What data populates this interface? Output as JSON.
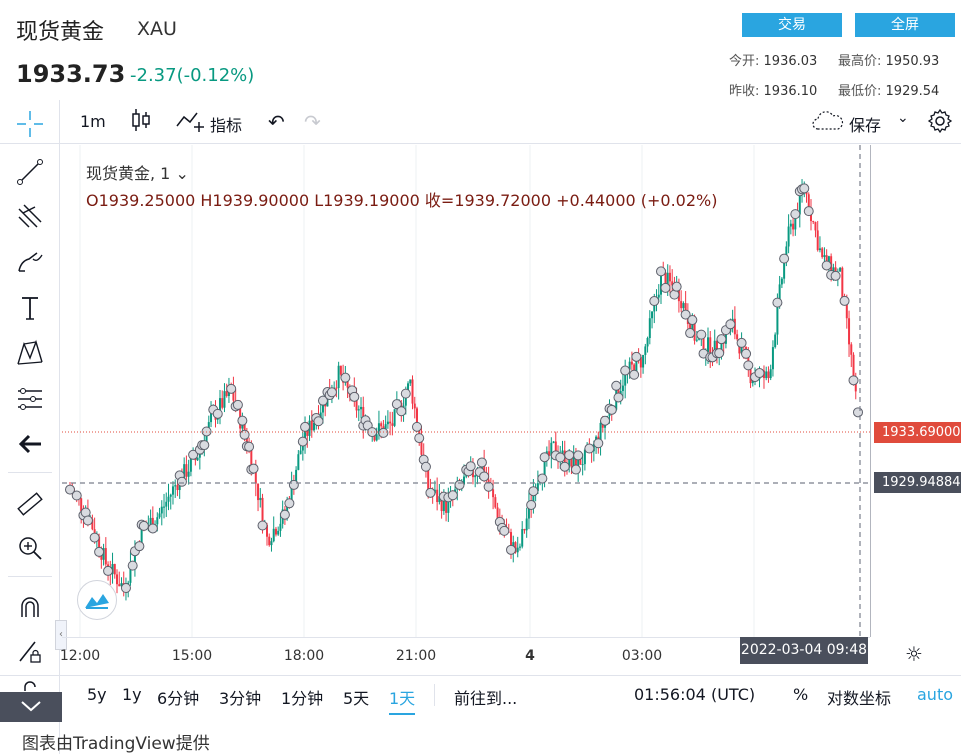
{
  "header": {
    "title": "现货黄金",
    "symbol": "XAU",
    "price": "1933.73",
    "change": "-2.37(-0.12%)",
    "trade_button": "交易",
    "fullscreen_button": "全屏",
    "open_label": "今开:",
    "open_value": "1936.03",
    "high_label": "最高价:",
    "high_value": "1950.93",
    "prev_close_label": "昨收:",
    "prev_close_value": "1936.10",
    "low_label": "最低价:",
    "low_value": "1929.54"
  },
  "toolbar": {
    "interval": "1m",
    "indicators": "指标",
    "save": "保存"
  },
  "legend": {
    "series": "现货黄金, 1",
    "ohlc": "O1939.25000   H1939.90000   L1939.19000   收=1939.72000   +0.44000 (+0.02%)"
  },
  "price_labels": {
    "current": "1933.69000",
    "crosshair": "1929.94884",
    "current_color": "#e04b3c",
    "crosshair_color": "#4a4f5c"
  },
  "time_axis": {
    "ticks": [
      "12:00",
      "15:00",
      "18:00",
      "21:00",
      "4",
      "03:00"
    ],
    "crosshair": "2022-03-04   09:48"
  },
  "bottom_bar": {
    "ranges": [
      "5y",
      "1y",
      "6分钟",
      "3分钟",
      "1分钟",
      "5天",
      "1天"
    ],
    "goto": "前往到...",
    "clock": "01:56:04 (UTC)",
    "percent": "%",
    "log": "对数坐标",
    "auto": "auto"
  },
  "footer": "图表由TradingView提供",
  "colors": {
    "up": "#089981",
    "down": "#f23645",
    "accent": "#2aa5e0"
  },
  "chart_data": {
    "type": "line",
    "x": [
      "12:00",
      "12:30",
      "13:00",
      "13:30",
      "14:00",
      "14:30",
      "15:00",
      "15:30",
      "16:00",
      "16:30",
      "17:00",
      "17:30",
      "18:00",
      "18:30",
      "19:00",
      "19:30",
      "20:00",
      "20:30",
      "21:00",
      "21:30",
      "22:00",
      "22:30",
      "23:00",
      "23:30",
      "00:00",
      "00:30",
      "01:00",
      "01:30",
      "02:00",
      "02:30",
      "03:00",
      "03:30",
      "04:00",
      "04:30",
      "05:00",
      "05:30",
      "06:00",
      "06:30",
      "07:00",
      "07:30",
      "08:00",
      "08:30",
      "09:00",
      "09:30",
      "09:48"
    ],
    "series": [
      {
        "values": [
          1929.0,
          1927.5,
          1924.5,
          1923.0,
          1926.5,
          1927.5,
          1929.5,
          1930.8,
          1933.5,
          1935.0,
          1931.5,
          1926.0,
          1927.5,
          1932.0,
          1934.0,
          1936.0,
          1934.0,
          1932.5,
          1933.0,
          1935.5,
          1929.0,
          1928.0,
          1929.5,
          1930.5,
          1927.0,
          1925.0,
          1929.5,
          1931.5,
          1930.5,
          1931.0,
          1933.5,
          1936.0,
          1937.0,
          1942.0,
          1941.0,
          1938.0,
          1937.5,
          1939.0,
          1936.0,
          1935.8,
          1944.0,
          1947.5,
          1943.0,
          1942.0,
          1933.7
        ]
      }
    ],
    "ylim": [
      1920,
      1950
    ],
    "ylabel": "",
    "xlabel": ""
  }
}
